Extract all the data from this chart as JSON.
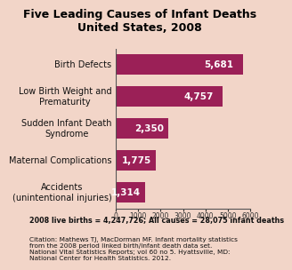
{
  "title": "Five Leading Causes of Infant Deaths\nUnited States, 2008",
  "categories": [
    "Birth Defects",
    "Low Birth Weight and\nPrematurity",
    "Sudden Infant Death\nSyndrome",
    "Maternal Complications",
    "Accidents\n(unintentional injuries)"
  ],
  "values": [
    5681,
    4757,
    2350,
    1775,
    1314
  ],
  "bar_color": "#9b2057",
  "bar_label_color": "#ffffff",
  "xlim": [
    0,
    6000
  ],
  "xticks": [
    0,
    1000,
    2000,
    3000,
    4000,
    5000,
    6000
  ],
  "footnote1": "2008 live births = 4,247,726; All causes = 28,075 infant deaths",
  "footnote2": "Citation: Mathews TJ, MacDorman MF. Infant mortality statistics\nfrom the 2008 period linked birth/infant death data set.\nNational Vital Statistics Reports; vol 60 no 5. Hyattsville, MD:\nNational Center for Health Statistics. 2012.",
  "bg_color": "#f2d5c8",
  "title_color": "#000000",
  "title_fontsize": 9.0,
  "label_fontsize": 7.0,
  "value_fontsize": 7.5,
  "footnote1_fontsize": 5.8,
  "footnote2_fontsize": 5.3,
  "tick_fontsize": 5.5
}
